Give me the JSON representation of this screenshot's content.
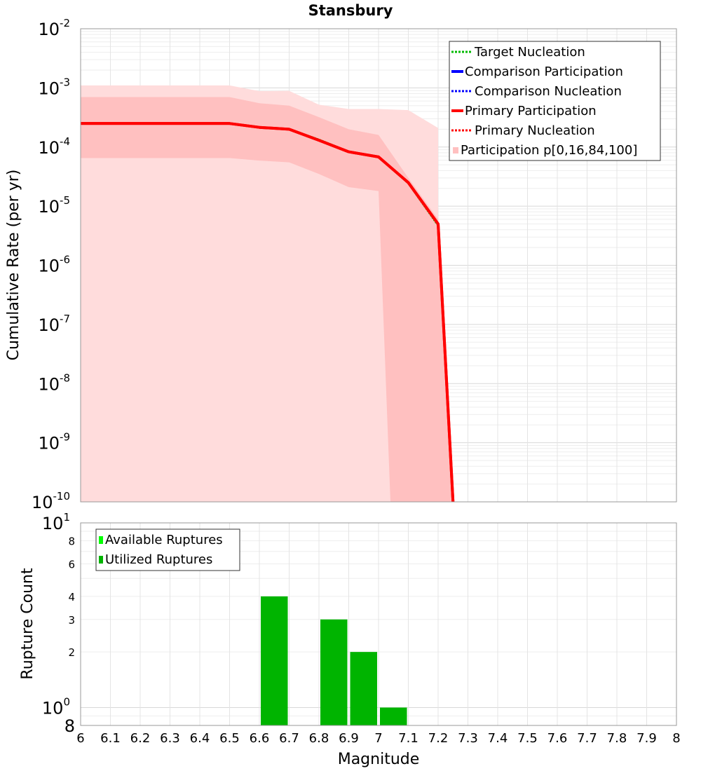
{
  "chart_data": [
    {
      "type": "line",
      "title": "Stansbury",
      "xlabel": "",
      "ylabel": "Cumulative Rate (per yr)",
      "xlim": [
        6,
        8
      ],
      "ylim": [
        1e-10,
        0.01
      ],
      "yscale": "log",
      "grid": true,
      "legend_position": "top-right",
      "x_ticks": [
        "6",
        "6.1",
        "6.2",
        "6.3",
        "6.4",
        "6.5",
        "6.6",
        "6.7",
        "6.8",
        "6.9",
        "7",
        "7.1",
        "7.2",
        "7.3",
        "7.4",
        "7.5",
        "7.6",
        "7.7",
        "7.8",
        "7.9",
        "8"
      ],
      "y_ticks": [
        {
          "base": "10",
          "exp": "-2"
        },
        {
          "base": "10",
          "exp": "-3"
        },
        {
          "base": "10",
          "exp": "-4"
        },
        {
          "base": "10",
          "exp": "-5"
        },
        {
          "base": "10",
          "exp": "-6"
        },
        {
          "base": "10",
          "exp": "-7"
        },
        {
          "base": "10",
          "exp": "-8"
        },
        {
          "base": "10",
          "exp": "-9"
        },
        {
          "base": "10",
          "exp": "-10"
        }
      ],
      "legend": [
        {
          "name": "Target Nucleation",
          "color": "#00bb00",
          "style": "dotted"
        },
        {
          "name": "Comparison Participation",
          "color": "#0000ff",
          "style": "solid"
        },
        {
          "name": "Comparison Nucleation",
          "color": "#0000ff",
          "style": "dotted"
        },
        {
          "name": "Primary Participation",
          "color": "#ff0000",
          "style": "solid"
        },
        {
          "name": "Primary Nucleation",
          "color": "#ff0000",
          "style": "dotted"
        },
        {
          "name": "Participation p[0,16,84,100]",
          "color": "#ffc0c0",
          "style": "band"
        }
      ],
      "series": [
        {
          "name": "Primary Participation",
          "color": "#ff0000",
          "x": [
            6.0,
            6.5,
            6.6,
            6.7,
            6.8,
            6.9,
            7.0,
            7.1,
            7.2,
            7.25
          ],
          "y": [
            0.00025,
            0.00025,
            0.000215,
            0.0002,
            0.00013,
            8.3e-05,
            6.8e-05,
            2.5e-05,
            5e-06,
            1e-10
          ]
        },
        {
          "name": "Target Nucleation",
          "color": "#00bb00",
          "x": [
            6.0,
            6.5,
            6.6,
            6.7,
            6.8,
            6.9,
            7.0,
            7.1,
            7.2
          ],
          "y": [
            0.00025,
            0.00025,
            0.000215,
            0.000202,
            0.000135,
            8.4e-05,
            6.8e-05,
            2.4e-05,
            4.6e-06
          ]
        }
      ],
      "band_outer": {
        "name": "p0-p100",
        "color": "#ffdcdc",
        "x": [
          6.0,
          6.5,
          6.6,
          6.7,
          6.8,
          6.9,
          7.0,
          7.1,
          7.2,
          7.2
        ],
        "upper": [
          0.0011,
          0.0011,
          0.00088,
          0.00089,
          0.00052,
          0.00044,
          0.00044,
          0.00042,
          0.00021,
          0.00021
        ],
        "lower": [
          1e-10,
          1e-10,
          1e-10,
          1e-10,
          1e-10,
          1e-10,
          1e-10,
          1e-10,
          1e-10,
          1e-10
        ]
      },
      "band_inner": {
        "name": "p16-p84",
        "color": "#ffc0c0",
        "x": [
          6.0,
          6.5,
          6.6,
          6.7,
          6.8,
          6.9,
          7.0,
          7.1,
          7.2,
          7.25
        ],
        "upper": [
          0.0007,
          0.0007,
          0.00055,
          0.0005,
          0.00032,
          0.0002,
          0.00016,
          3e-05,
          6e-06,
          1e-10
        ],
        "lower": [
          6.5e-05,
          6.5e-05,
          5.9e-05,
          5.5e-05,
          3.5e-05,
          2.1e-05,
          1.8e-05,
          1e-10,
          1e-10,
          1e-10
        ],
        "lower_x": [
          6.0,
          6.5,
          6.6,
          6.7,
          6.8,
          6.9,
          7.0,
          7.04,
          7.2,
          7.25
        ]
      }
    },
    {
      "type": "bar",
      "title": "",
      "xlabel": "Magnitude",
      "ylabel": "Rupture Count",
      "xlim": [
        6,
        8
      ],
      "yscale": "log",
      "ylim": [
        0.8,
        10
      ],
      "grid": true,
      "legend_position": "top-left",
      "y_tick_labels": [
        {
          "value": 10,
          "base": "10",
          "exp": "1"
        },
        {
          "value": 8,
          "label": "8"
        },
        {
          "value": 6,
          "label": "6"
        },
        {
          "value": 4,
          "label": "4"
        },
        {
          "value": 3,
          "label": "3"
        },
        {
          "value": 2,
          "label": "2"
        },
        {
          "value": 1,
          "base": "10",
          "exp": "0"
        },
        {
          "value": 0.8,
          "label": "8"
        }
      ],
      "legend": [
        {
          "name": "Available Ruptures",
          "color": "#00ff00"
        },
        {
          "name": "Utilized Ruptures",
          "color": "#00b400"
        }
      ],
      "bars": [
        {
          "x0": 6.6,
          "x1": 6.7,
          "value": 4,
          "color": "#00b400"
        },
        {
          "x0": 6.8,
          "x1": 6.9,
          "value": 3,
          "color": "#00b400"
        },
        {
          "x0": 6.9,
          "x1": 7.0,
          "value": 2,
          "color": "#00b400"
        },
        {
          "x0": 7.0,
          "x1": 7.1,
          "value": 1,
          "color": "#00b400"
        }
      ]
    }
  ]
}
